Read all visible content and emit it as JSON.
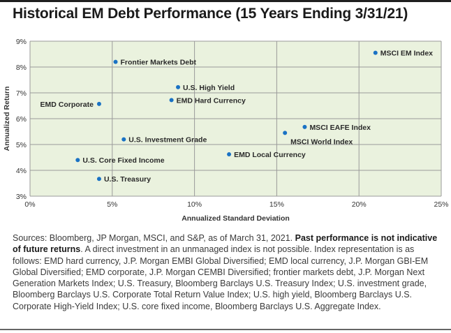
{
  "title": "Historical EM Debt Performance (15 Years Ending 3/31/21)",
  "source": {
    "prefix": "Sources: Bloomberg, JP Morgan, MSCI, and S&P, as of March 31, 2021.",
    "bold": "Past performance is not indicative of future returns",
    "rest": ". A direct investment in an unmanaged index is not possible. Index representation is as follows: EMD hard currency, J.P. Morgan EMBI Global Diversified; EMD local currency, J.P. Morgan GBI-EM Global Diversified; EMD corporate, J.P. Morgan CEMBI Diversified; frontier markets debt, J.P. Morgan Next Generation Markets Index; U.S. Treasury, Bloomberg Barclays U.S. Treasury Index; U.S. investment grade, Bloomberg Barclays U.S. Corporate Total Return Value Index; U.S. high yield, Bloomberg Barclays U.S. Corporate High-Yield Index; U.S. core fixed income, Bloomberg Barclays U.S. Aggregate Index."
  },
  "colors": {
    "plot_bg": "#eaf2de",
    "grid": "#9a9a9a",
    "point": "#1a72c4"
  },
  "chart_data": {
    "type": "scatter",
    "xlabel": "Annualized Standard Deviation",
    "ylabel": "Annualized Return",
    "xlim": [
      0,
      25
    ],
    "ylim": [
      3,
      9
    ],
    "xticks": [
      0,
      5,
      10,
      15,
      20,
      25
    ],
    "yticks": [
      3,
      4,
      5,
      6,
      7,
      8,
      9
    ],
    "xtick_labels": [
      "0%",
      "5%",
      "10%",
      "15%",
      "20%",
      "25%"
    ],
    "ytick_labels": [
      "3%",
      "4%",
      "5%",
      "6%",
      "7%",
      "8%",
      "9%"
    ],
    "grid": true,
    "points": [
      {
        "label": "MSCI EM Index",
        "x": 21.0,
        "y": 8.55,
        "side": "right"
      },
      {
        "label": "Frontier Markets Debt",
        "x": 5.2,
        "y": 8.2,
        "side": "right"
      },
      {
        "label": "U.S. High Yield",
        "x": 9.0,
        "y": 7.22,
        "side": "right"
      },
      {
        "label": "EMD Hard Currency",
        "x": 8.6,
        "y": 6.72,
        "side": "right"
      },
      {
        "label": "EMD Corporate",
        "x": 4.2,
        "y": 6.57,
        "side": "left"
      },
      {
        "label": "MSCI EAFE Index",
        "x": 16.7,
        "y": 5.68,
        "side": "right"
      },
      {
        "label": "MSCI World Index",
        "x": 15.5,
        "y": 5.45,
        "side": "below-right"
      },
      {
        "label": "U.S. Investment Grade",
        "x": 5.7,
        "y": 5.2,
        "side": "right"
      },
      {
        "label": "EMD Local Currency",
        "x": 12.1,
        "y": 4.62,
        "side": "right"
      },
      {
        "label": "U.S. Core Fixed Income",
        "x": 2.9,
        "y": 4.4,
        "side": "right"
      },
      {
        "label": "U.S. Treasury",
        "x": 4.2,
        "y": 3.67,
        "side": "right"
      }
    ]
  }
}
